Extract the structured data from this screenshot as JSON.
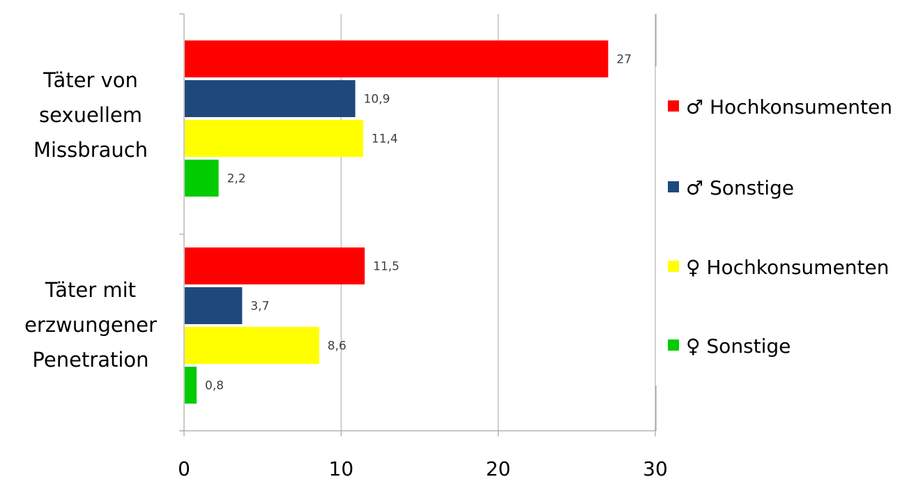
{
  "chart_data": {
    "type": "bar",
    "orientation": "horizontal",
    "categories": [
      [
        "Täter von",
        "sexuellem",
        "Missbrauch"
      ],
      [
        "Täter mit",
        "erzwungener",
        "Penetration"
      ]
    ],
    "series": [
      {
        "name": "♂ Hochkonsumenten",
        "color": "#ff0000",
        "values": [
          27,
          11.5
        ],
        "labels": [
          "27",
          "11,5"
        ]
      },
      {
        "name": "♂ Sonstige",
        "color": "#1f497d",
        "values": [
          10.9,
          3.7
        ],
        "labels": [
          "10,9",
          "3,7"
        ]
      },
      {
        "name": "♀ Hochkonsumenten",
        "color": "#ffff00",
        "values": [
          11.4,
          8.6
        ],
        "labels": [
          "11,4",
          "8,6"
        ]
      },
      {
        "name": "♀ Sonstige",
        "color": "#00cc00",
        "values": [
          2.2,
          0.8
        ],
        "labels": [
          "2,2",
          "0,8"
        ]
      }
    ],
    "xlim": [
      0,
      30
    ],
    "xticks": [
      0,
      10,
      20,
      30
    ],
    "xtick_labels": [
      "0",
      "10",
      "20",
      "30"
    ],
    "grid": true,
    "legend": "right"
  }
}
